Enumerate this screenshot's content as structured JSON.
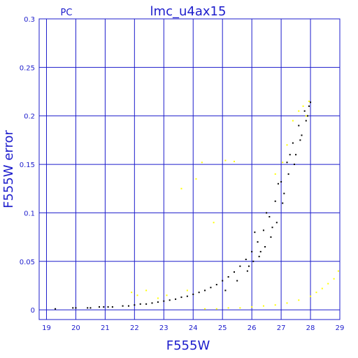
{
  "chart_data": {
    "type": "scatter",
    "title": "lmc_u4ax15",
    "corner_label": "PC",
    "xlabel": "F555W",
    "ylabel": "F555W error",
    "xlim": [
      18.75,
      29
    ],
    "ylim": [
      -0.01,
      0.3
    ],
    "x_ticks": [
      19,
      20,
      21,
      22,
      23,
      24,
      25,
      26,
      27,
      28,
      29
    ],
    "y_ticks": [
      0,
      0.05,
      0.1,
      0.15,
      0.2,
      0.25,
      0.3
    ],
    "y_tick_labels": [
      "0",
      "0.05",
      "0.1",
      "0.15",
      "0.2",
      "0.25",
      "0.3"
    ],
    "grid": true,
    "colors": {
      "axes": "#1c1ccc",
      "grid": "#1c1ccc",
      "text": "#1c1ccc",
      "series_black": "#000000",
      "series_yellow": "#ffff00"
    },
    "series": [
      {
        "color": "#000000",
        "points": [
          [
            19.3,
            0.001
          ],
          [
            19.9,
            0.002
          ],
          [
            20.0,
            0.002
          ],
          [
            20.4,
            0.002
          ],
          [
            20.5,
            0.002
          ],
          [
            20.8,
            0.003
          ],
          [
            20.95,
            0.003
          ],
          [
            21.1,
            0.003
          ],
          [
            21.25,
            0.003
          ],
          [
            21.6,
            0.004
          ],
          [
            21.8,
            0.004
          ],
          [
            22.0,
            0.005
          ],
          [
            22.2,
            0.006
          ],
          [
            22.4,
            0.006
          ],
          [
            22.6,
            0.007
          ],
          [
            22.8,
            0.008
          ],
          [
            23.0,
            0.009
          ],
          [
            23.2,
            0.01
          ],
          [
            23.4,
            0.011
          ],
          [
            23.6,
            0.013
          ],
          [
            23.8,
            0.014
          ],
          [
            24.0,
            0.016
          ],
          [
            24.2,
            0.018
          ],
          [
            24.4,
            0.02
          ],
          [
            24.6,
            0.023
          ],
          [
            24.8,
            0.026
          ],
          [
            25.0,
            0.03
          ],
          [
            25.2,
            0.034
          ],
          [
            25.4,
            0.039
          ],
          [
            25.6,
            0.045
          ],
          [
            25.8,
            0.052
          ],
          [
            26.0,
            0.06
          ],
          [
            26.2,
            0.07
          ],
          [
            26.4,
            0.082
          ],
          [
            26.6,
            0.096
          ],
          [
            26.8,
            0.112
          ],
          [
            27.0,
            0.132
          ],
          [
            27.2,
            0.152
          ],
          [
            27.4,
            0.172
          ],
          [
            27.6,
            0.19
          ],
          [
            27.8,
            0.205
          ],
          [
            28.0,
            0.214
          ],
          [
            25.1,
            0.02
          ],
          [
            25.5,
            0.03
          ],
          [
            25.9,
            0.045
          ],
          [
            26.3,
            0.06
          ],
          [
            26.7,
            0.085
          ],
          [
            27.1,
            0.12
          ],
          [
            27.5,
            0.16
          ],
          [
            27.9,
            0.2
          ],
          [
            26.1,
            0.08
          ],
          [
            26.5,
            0.1
          ],
          [
            26.9,
            0.13
          ],
          [
            27.3,
            0.16
          ],
          [
            27.7,
            0.18
          ],
          [
            27.95,
            0.21
          ],
          [
            27.85,
            0.195
          ],
          [
            27.65,
            0.175
          ],
          [
            27.45,
            0.15
          ],
          [
            27.25,
            0.14
          ],
          [
            27.05,
            0.11
          ],
          [
            26.85,
            0.09
          ],
          [
            26.65,
            0.075
          ],
          [
            26.45,
            0.065
          ],
          [
            26.25,
            0.055
          ],
          [
            26.05,
            0.05
          ],
          [
            25.85,
            0.04
          ]
        ]
      },
      {
        "color": "#ffff00",
        "points": [
          [
            21.9,
            0.018
          ],
          [
            22.1,
            0.015
          ],
          [
            22.4,
            0.02
          ],
          [
            22.8,
            0.012
          ],
          [
            23.1,
            0.015
          ],
          [
            23.6,
            0.125
          ],
          [
            23.8,
            0.02
          ],
          [
            24.1,
            0.135
          ],
          [
            24.3,
            0.152
          ],
          [
            24.7,
            0.09
          ],
          [
            25.1,
            0.154
          ],
          [
            25.4,
            0.153
          ],
          [
            26.8,
            0.14
          ],
          [
            27.05,
            0.152
          ],
          [
            27.2,
            0.17
          ],
          [
            27.4,
            0.195
          ],
          [
            27.6,
            0.205
          ],
          [
            27.75,
            0.21
          ],
          [
            27.85,
            0.2
          ],
          [
            27.95,
            0.215
          ],
          [
            24.4,
            0.001
          ],
          [
            24.8,
            0.001
          ],
          [
            25.2,
            0.002
          ],
          [
            25.6,
            0.002
          ],
          [
            26.0,
            0.003
          ],
          [
            26.4,
            0.004
          ],
          [
            26.8,
            0.005
          ],
          [
            27.2,
            0.007
          ],
          [
            27.6,
            0.01
          ],
          [
            28.0,
            0.014
          ],
          [
            28.2,
            0.018
          ],
          [
            28.4,
            0.022
          ],
          [
            28.6,
            0.027
          ],
          [
            28.8,
            0.032
          ],
          [
            28.95,
            0.04
          ]
        ]
      }
    ]
  }
}
